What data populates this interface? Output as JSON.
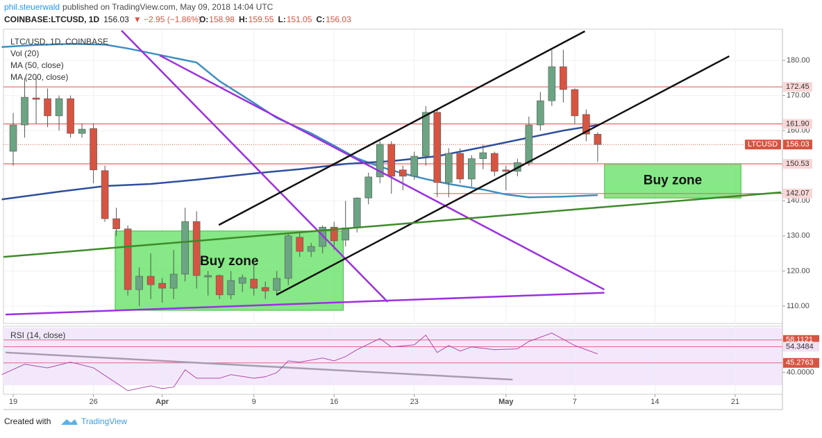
{
  "header": {
    "author": "phil.steuerwald",
    "published": "published on TradingView.com, May 09, 2018 14:04 UTC",
    "symbol": "COINBASE:LTCUSD, 1D",
    "price": "156.03",
    "change": "▼ −2.95 (−1.86%)",
    "ohlc": [
      [
        "O:",
        "158.98"
      ],
      [
        "H:",
        "159.55"
      ],
      [
        "L:",
        "151.05"
      ],
      [
        "C:",
        "156.03"
      ]
    ]
  },
  "footer": {
    "created": "Created with",
    "brand": "TradingView"
  },
  "chart_data": {
    "type": "candlestick",
    "legend": [
      "LTC/USD, 1D, COINBASE",
      "Vol (20)",
      "MA (50, close)",
      "MA (200, close)"
    ],
    "x": [
      1,
      2,
      3,
      4,
      5,
      6,
      7,
      8,
      9,
      10,
      11,
      12,
      13,
      14,
      15,
      16,
      17,
      18,
      19,
      20,
      21,
      22,
      23,
      24,
      25,
      26,
      27,
      28,
      29,
      30,
      31,
      32,
      33,
      34,
      35,
      36,
      37,
      38,
      39,
      40,
      41,
      42,
      43,
      44,
      45,
      46,
      47,
      48,
      49,
      50,
      51,
      52
    ],
    "open": [
      154.1,
      161.6,
      169.3,
      169.1,
      164.2,
      169.1,
      159.2,
      160.6,
      148.6,
      134.9,
      132.0,
      114.7,
      118.5,
      116.5,
      115.1,
      119.1,
      134.1,
      118.3,
      118.7,
      113.2,
      116.5,
      117.7,
      115.3,
      114.5,
      117.9,
      129.6,
      125.6,
      127.0,
      132.5,
      128.8,
      132.3,
      140.8,
      146.8,
      156.1,
      148.8,
      147.0,
      152.7,
      165.2,
      145.2,
      153.5,
      146.2,
      152.0,
      153.5,
      148.8,
      148.4,
      150.9,
      161.6,
      168.5,
      178.2,
      171.7,
      164.6,
      158.98
    ],
    "high": [
      165,
      175,
      175,
      172,
      170,
      170,
      162,
      162,
      150,
      138,
      133,
      121,
      125,
      118,
      126,
      138,
      137,
      120,
      119,
      120,
      119,
      123,
      117,
      120,
      131,
      131,
      128,
      133,
      134,
      140,
      141,
      148,
      157,
      157,
      150,
      154,
      167,
      166,
      155,
      155,
      153,
      156,
      154,
      150,
      152,
      164,
      171,
      183,
      183,
      172,
      166,
      159.55
    ],
    "low": [
      150,
      158,
      162,
      161,
      160,
      158,
      158,
      145,
      134,
      130,
      113,
      110,
      112,
      111,
      112,
      117,
      115,
      113,
      112,
      112,
      114,
      113,
      112,
      113,
      116,
      124,
      124,
      125,
      126,
      127,
      131,
      139,
      145,
      142,
      143,
      146,
      150,
      141,
      141,
      145,
      144,
      149,
      147,
      143,
      147,
      150,
      160,
      167,
      168,
      162,
      157,
      151.05
    ],
    "close": [
      161.6,
      169.5,
      168.9,
      164.2,
      169.1,
      159.2,
      160.4,
      148.8,
      134.9,
      132.0,
      114.7,
      118.5,
      116.1,
      115.1,
      119.1,
      134.1,
      118.7,
      118.7,
      113.2,
      117.3,
      118.1,
      115.1,
      114.3,
      117.9,
      130.0,
      125.6,
      127.0,
      132.5,
      128.6,
      132.3,
      140.8,
      146.8,
      156.1,
      147.0,
      147.0,
      152.7,
      165.2,
      145.2,
      153.5,
      146.2,
      152.0,
      153.7,
      148.4,
      148.4,
      150.9,
      161.6,
      168.5,
      178.2,
      171.7,
      164.2,
      159.0,
      156.03
    ],
    "up_color": "#6ba583",
    "down_color": "#d75442",
    "series": [
      {
        "name": "MA (50, close)",
        "color": "#3d8fc0",
        "x": [
          0,
          3,
          6,
          9,
          11,
          14,
          17,
          19,
          22,
          24,
          27,
          29,
          31,
          33,
          35,
          37,
          39,
          42,
          44,
          46,
          49,
          52
        ],
        "values": [
          183.8,
          184.4,
          184.7,
          184.5,
          183.4,
          181.4,
          179.4,
          174.1,
          167.9,
          163.6,
          159.2,
          155.7,
          152.1,
          149.7,
          147.8,
          146.2,
          144.8,
          143.2,
          141.8,
          141.0,
          141.2,
          141.6
        ]
      },
      {
        "name": "MA (200, close)",
        "color": "#2e4f9e",
        "x": [
          0,
          5,
          9,
          13,
          17,
          22,
          26,
          30,
          34,
          38,
          42,
          46,
          49,
          52
        ],
        "values": [
          140.4,
          142.6,
          144.2,
          144.8,
          146.0,
          147.8,
          149.0,
          150.5,
          151.3,
          152.7,
          155.3,
          158.0,
          160.0,
          161.6
        ]
      }
    ],
    "xlim": [
      0.15,
      68
    ],
    "xticks": [
      {
        "value": 1,
        "label": "19"
      },
      {
        "value": 8,
        "label": "26"
      },
      {
        "value": 14,
        "label": "Apr"
      },
      {
        "value": 22,
        "label": "9"
      },
      {
        "value": 29,
        "label": "16"
      },
      {
        "value": 36,
        "label": "23"
      },
      {
        "value": 44,
        "label": "May"
      },
      {
        "value": 50,
        "label": "7"
      },
      {
        "value": 57,
        "label": "14"
      },
      {
        "value": 64,
        "label": "21"
      }
    ],
    "ylim": [
      105.05,
      188.9
    ],
    "yticks": [
      {
        "value": 110,
        "label": "110.00"
      },
      {
        "value": 120,
        "label": "120.00"
      },
      {
        "value": 130,
        "label": "130.00"
      },
      {
        "value": 140,
        "label": "140.00"
      },
      {
        "value": 150,
        "label": "150.00"
      },
      {
        "value": 160,
        "label": "160.00"
      },
      {
        "value": 170,
        "label": "170.00"
      },
      {
        "value": 180,
        "label": "180.00"
      }
    ],
    "grid": true,
    "levels": [
      {
        "value": 172.45,
        "label": "172.45",
        "from": 0.15
      },
      {
        "value": 161.9,
        "label": "161.90",
        "from": 0.15
      },
      {
        "value": 150.53,
        "label": "150.53",
        "from": 0.15
      },
      {
        "value": 142.07,
        "label": "142.07",
        "from": 37.7
      }
    ],
    "level_color": "#e06666",
    "last_price": 156.03,
    "last_price_name": "LTCUSD",
    "zones": [
      {
        "label": "Buy zone",
        "x": [
          9.9,
          29.8
        ],
        "y": [
          108.8,
          131.4
        ]
      },
      {
        "label": "Buy zone",
        "x": [
          52.6,
          64.5
        ],
        "y": [
          140.8,
          150.5
        ]
      }
    ],
    "zone_color": "#5ee05e",
    "trendlines": [
      {
        "color": "#9b30e0",
        "x": [
          10.45,
          33.67
        ],
        "y": [
          188.5,
          111.2
        ]
      },
      {
        "color": "#9b30e0",
        "x": [
          13.79,
          52.58
        ],
        "y": [
          181.4,
          114.7
        ]
      },
      {
        "color": "#9b30e0",
        "x": [
          0.33,
          52.58
        ],
        "y": [
          107.6,
          113.8
        ]
      },
      {
        "color": "#111111",
        "x": [
          18.94,
          50.88
        ],
        "y": [
          133.1,
          188.3
        ]
      },
      {
        "color": "#111111",
        "x": [
          23.97,
          63.48
        ],
        "y": [
          113.2,
          181.2
        ]
      },
      {
        "color": "#3e8a2a",
        "x": [
          0.15,
          68
        ],
        "y": [
          124.0,
          142.4
        ]
      }
    ],
    "rsi": {
      "name": "RSI (14, close)",
      "color": "#b04aa8",
      "x": [
        0,
        2,
        4,
        6,
        8,
        10,
        11,
        13,
        14,
        15,
        16,
        17,
        19,
        20,
        22,
        23,
        24,
        25,
        26,
        28,
        29,
        30,
        31,
        33,
        34,
        36,
        37,
        38,
        39,
        40,
        41,
        43,
        45,
        46,
        48,
        50,
        52
      ],
      "values": [
        38.7,
        44.5,
        42.5,
        45.7,
        42.5,
        34.0,
        29.7,
        32.4,
        30.9,
        31.7,
        41.4,
        36.7,
        36.7,
        38.7,
        36.7,
        37.5,
        39.8,
        46.4,
        45.7,
        48.0,
        46.4,
        48.8,
        52.7,
        58.9,
        54.2,
        55.4,
        60.8,
        51.1,
        55.0,
        51.9,
        54.2,
        52.7,
        53.1,
        57.3,
        62.0,
        55.0,
        50.3
      ],
      "ylim": [
        27.7,
        65.8
      ],
      "yticks": [
        {
          "value": 40,
          "label": "40.0000"
        }
      ],
      "levels": [
        58.1121,
        54.3484,
        45.2763
      ],
      "trendline": {
        "color": "#a89bb0",
        "x": [
          0.33,
          44.58
        ],
        "y": [
          51.1,
          35.9
        ]
      }
    }
  }
}
